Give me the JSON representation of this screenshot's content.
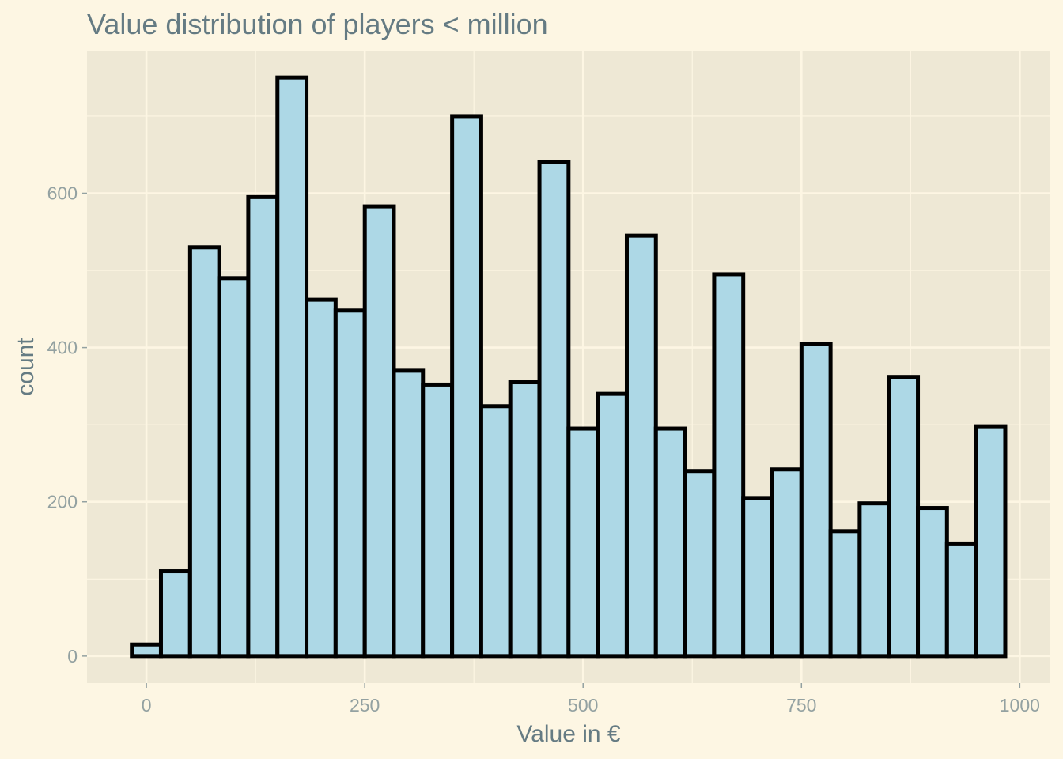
{
  "chart_data": {
    "type": "bar",
    "title": "Value distribution of players < million",
    "xlabel": "Value in €",
    "ylabel": "count",
    "xlim": [
      -68,
      1035
    ],
    "ylim": [
      -35,
      785
    ],
    "x_ticks": [
      0,
      250,
      500,
      750,
      1000
    ],
    "y_ticks": [
      0,
      200,
      400,
      600
    ],
    "grid": true,
    "bin_width": 33.3,
    "bin_centers": [
      0,
      33.3,
      66.7,
      100,
      133.3,
      166.7,
      200,
      233.3,
      266.7,
      300,
      333.3,
      366.7,
      400,
      433.3,
      466.7,
      500,
      533.3,
      566.7,
      600,
      633.3,
      666.7,
      700,
      733.3,
      766.7,
      800,
      833.3,
      866.7,
      900,
      933.3,
      966.7
    ],
    "values": [
      15,
      110,
      530,
      490,
      595,
      750,
      462,
      448,
      583,
      370,
      352,
      700,
      324,
      355,
      640,
      295,
      340,
      545,
      295,
      240,
      495,
      205,
      242,
      405,
      162,
      198,
      362,
      192,
      146,
      298
    ],
    "colors": {
      "background": "#fdf6e3",
      "panel": "#eee8d5",
      "grid": "#fdf6e3",
      "bar_fill": "#add8e6",
      "bar_stroke": "#000000"
    }
  }
}
